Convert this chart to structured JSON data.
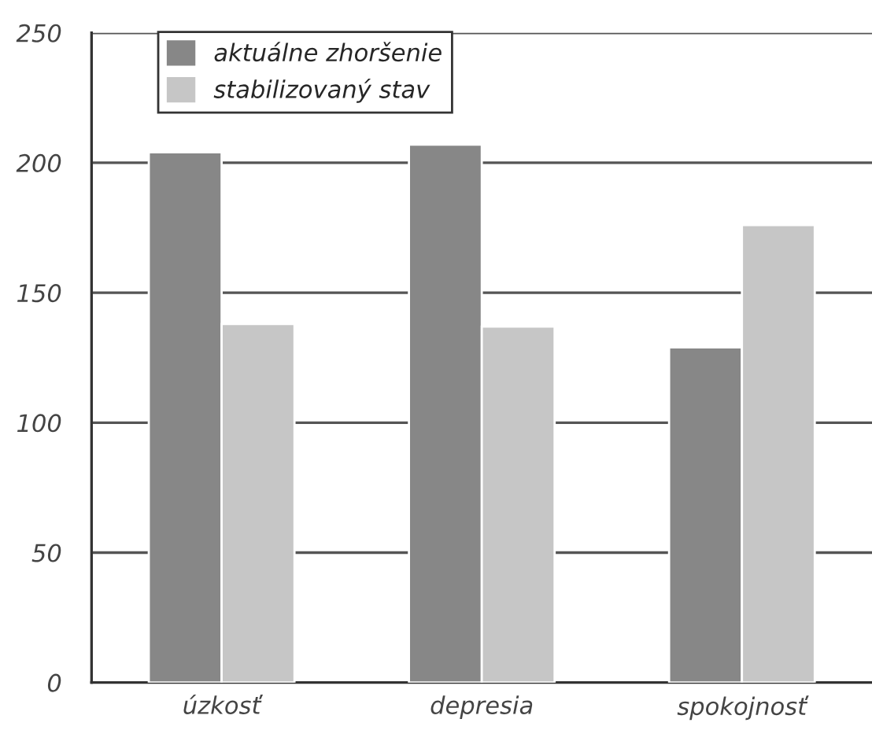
{
  "chart_data": {
    "type": "bar",
    "categories": [
      "úzkosť",
      "depresia",
      "spokojnosť"
    ],
    "series": [
      {
        "name": "aktuálne zhoršenie",
        "color": "#878787",
        "values": [
          204,
          207,
          129
        ]
      },
      {
        "name": "stabilizovaný stav",
        "color": "#c6c6c6",
        "values": [
          138,
          137,
          176
        ]
      }
    ],
    "ylim": [
      0,
      250
    ],
    "yticks": [
      0,
      50,
      100,
      150,
      200,
      250
    ],
    "grid": "y",
    "legend": "top left"
  }
}
